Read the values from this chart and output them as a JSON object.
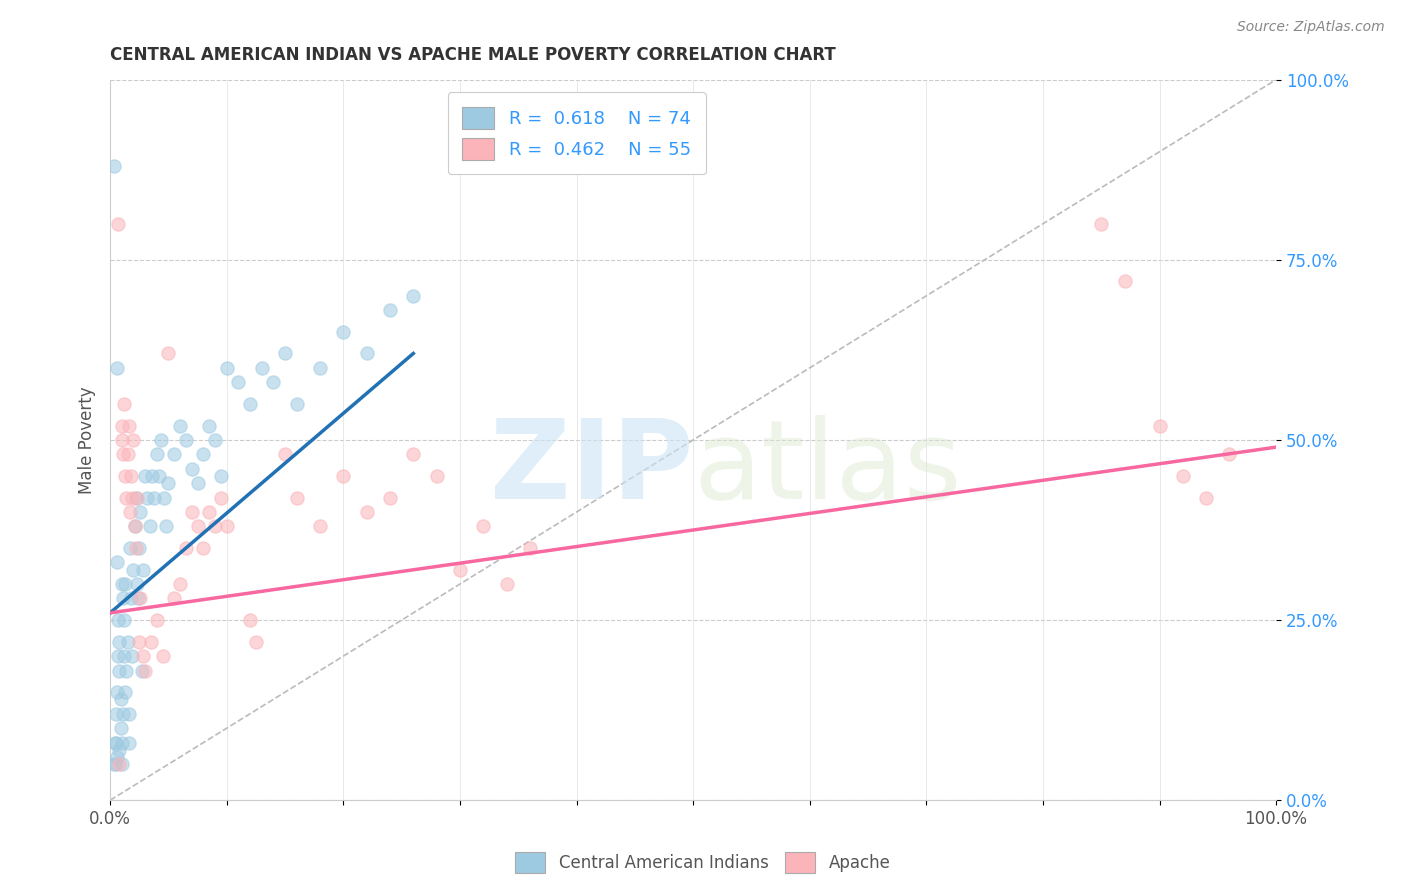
{
  "title": "CENTRAL AMERICAN INDIAN VS APACHE MALE POVERTY CORRELATION CHART",
  "source": "Source: ZipAtlas.com",
  "ylabel": "Male Poverty",
  "xlim": [
    0,
    1
  ],
  "ylim": [
    0,
    1
  ],
  "watermark_zip": "ZIP",
  "watermark_atlas": "atlas",
  "legend_R1": "R = 0.618",
  "legend_N1": "N = 74",
  "legend_R2": "R = 0.462",
  "legend_N2": "N = 55",
  "color_blue": "#9ecae1",
  "color_pink": "#fbb4b9",
  "color_blue_line": "#2171b5",
  "color_pink_line": "#f768a1",
  "color_diagonal": "#bbbbbb",
  "color_ytick": "#3399ff",
  "color_xtick": "#3399ff",
  "background_color": "#ffffff",
  "blue_scatter_x": [
    0.005,
    0.005,
    0.005,
    0.006,
    0.007,
    0.007,
    0.008,
    0.008,
    0.009,
    0.009,
    0.01,
    0.01,
    0.011,
    0.011,
    0.012,
    0.012,
    0.013,
    0.013,
    0.014,
    0.015,
    0.016,
    0.016,
    0.017,
    0.018,
    0.019,
    0.02,
    0.021,
    0.022,
    0.023,
    0.024,
    0.025,
    0.026,
    0.027,
    0.028,
    0.03,
    0.032,
    0.034,
    0.036,
    0.038,
    0.04,
    0.042,
    0.044,
    0.046,
    0.048,
    0.05,
    0.055,
    0.06,
    0.065,
    0.07,
    0.075,
    0.08,
    0.085,
    0.09,
    0.095,
    0.1,
    0.11,
    0.12,
    0.13,
    0.14,
    0.15,
    0.16,
    0.18,
    0.2,
    0.22,
    0.24,
    0.26,
    0.003,
    0.004,
    0.006,
    0.008,
    0.01,
    0.003,
    0.006,
    0.006
  ],
  "blue_scatter_y": [
    0.05,
    0.12,
    0.08,
    0.15,
    0.2,
    0.25,
    0.18,
    0.22,
    0.1,
    0.14,
    0.3,
    0.08,
    0.28,
    0.12,
    0.2,
    0.25,
    0.15,
    0.3,
    0.18,
    0.22,
    0.08,
    0.12,
    0.35,
    0.28,
    0.2,
    0.32,
    0.38,
    0.42,
    0.3,
    0.28,
    0.35,
    0.4,
    0.18,
    0.32,
    0.45,
    0.42,
    0.38,
    0.45,
    0.42,
    0.48,
    0.45,
    0.5,
    0.42,
    0.38,
    0.44,
    0.48,
    0.52,
    0.5,
    0.46,
    0.44,
    0.48,
    0.52,
    0.5,
    0.45,
    0.6,
    0.58,
    0.55,
    0.6,
    0.58,
    0.62,
    0.55,
    0.6,
    0.65,
    0.62,
    0.68,
    0.7,
    0.05,
    0.08,
    0.06,
    0.07,
    0.05,
    0.88,
    0.6,
    0.33
  ],
  "pink_scatter_x": [
    0.007,
    0.01,
    0.01,
    0.011,
    0.012,
    0.013,
    0.014,
    0.015,
    0.016,
    0.017,
    0.018,
    0.019,
    0.02,
    0.021,
    0.022,
    0.023,
    0.025,
    0.026,
    0.028,
    0.03,
    0.035,
    0.04,
    0.045,
    0.05,
    0.055,
    0.06,
    0.065,
    0.07,
    0.075,
    0.08,
    0.085,
    0.09,
    0.095,
    0.1,
    0.12,
    0.125,
    0.15,
    0.16,
    0.18,
    0.2,
    0.22,
    0.24,
    0.26,
    0.28,
    0.3,
    0.32,
    0.34,
    0.36,
    0.85,
    0.87,
    0.9,
    0.92,
    0.94,
    0.96,
    0.008
  ],
  "pink_scatter_y": [
    0.8,
    0.5,
    0.52,
    0.48,
    0.55,
    0.45,
    0.42,
    0.48,
    0.52,
    0.4,
    0.45,
    0.42,
    0.5,
    0.38,
    0.35,
    0.42,
    0.22,
    0.28,
    0.2,
    0.18,
    0.22,
    0.25,
    0.2,
    0.62,
    0.28,
    0.3,
    0.35,
    0.4,
    0.38,
    0.35,
    0.4,
    0.38,
    0.42,
    0.38,
    0.25,
    0.22,
    0.48,
    0.42,
    0.38,
    0.45,
    0.4,
    0.42,
    0.48,
    0.45,
    0.32,
    0.38,
    0.3,
    0.35,
    0.8,
    0.72,
    0.52,
    0.45,
    0.42,
    0.48,
    0.05
  ],
  "blue_line_x": [
    0.0,
    0.26
  ],
  "blue_line_y": [
    0.26,
    0.62
  ],
  "pink_line_x": [
    0.0,
    1.0
  ],
  "pink_line_y": [
    0.26,
    0.49
  ],
  "diagonal_line": [
    [
      0,
      0
    ],
    [
      1,
      1
    ]
  ],
  "xtick_positions": [
    0,
    0.1,
    0.2,
    0.3,
    0.4,
    0.5,
    0.6,
    0.7,
    0.8,
    0.9,
    1.0
  ],
  "ytick_positions": [
    0,
    0.25,
    0.5,
    0.75,
    1.0
  ],
  "ytick_labels": [
    "0.0%",
    "25.0%",
    "50.0%",
    "75.0%",
    "100.0%"
  ]
}
